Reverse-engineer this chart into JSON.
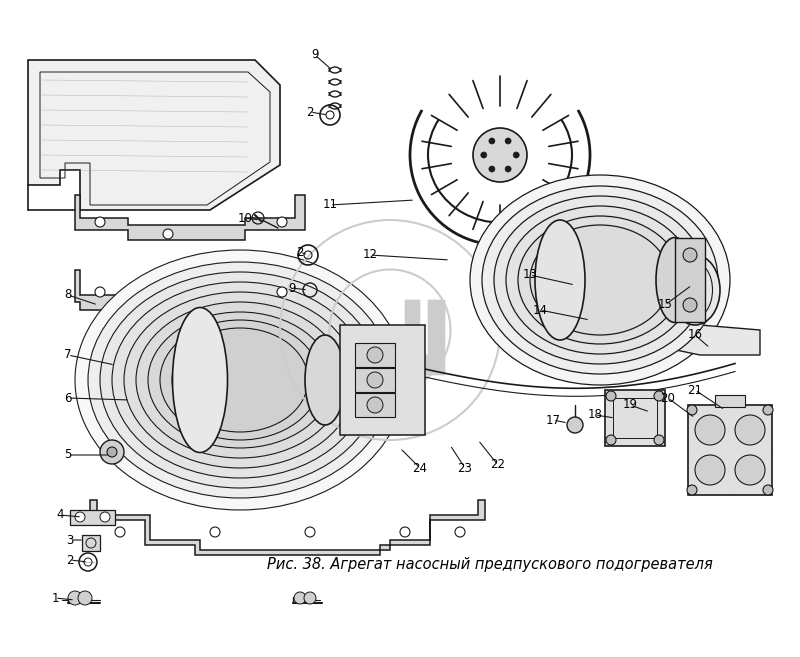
{
  "caption": "Рис. 38. Агрегат насосный предпускового подогревателя",
  "caption_fontsize": 10.5,
  "background_color": "#ffffff",
  "fig_width": 8.0,
  "fig_height": 6.57,
  "dpi": 100,
  "line_color": "#1a1a1a",
  "light_gray": "#d8d8d8",
  "med_gray": "#b8b8b8",
  "dark_gray": "#888888",
  "watermark_color": "#cccccc"
}
